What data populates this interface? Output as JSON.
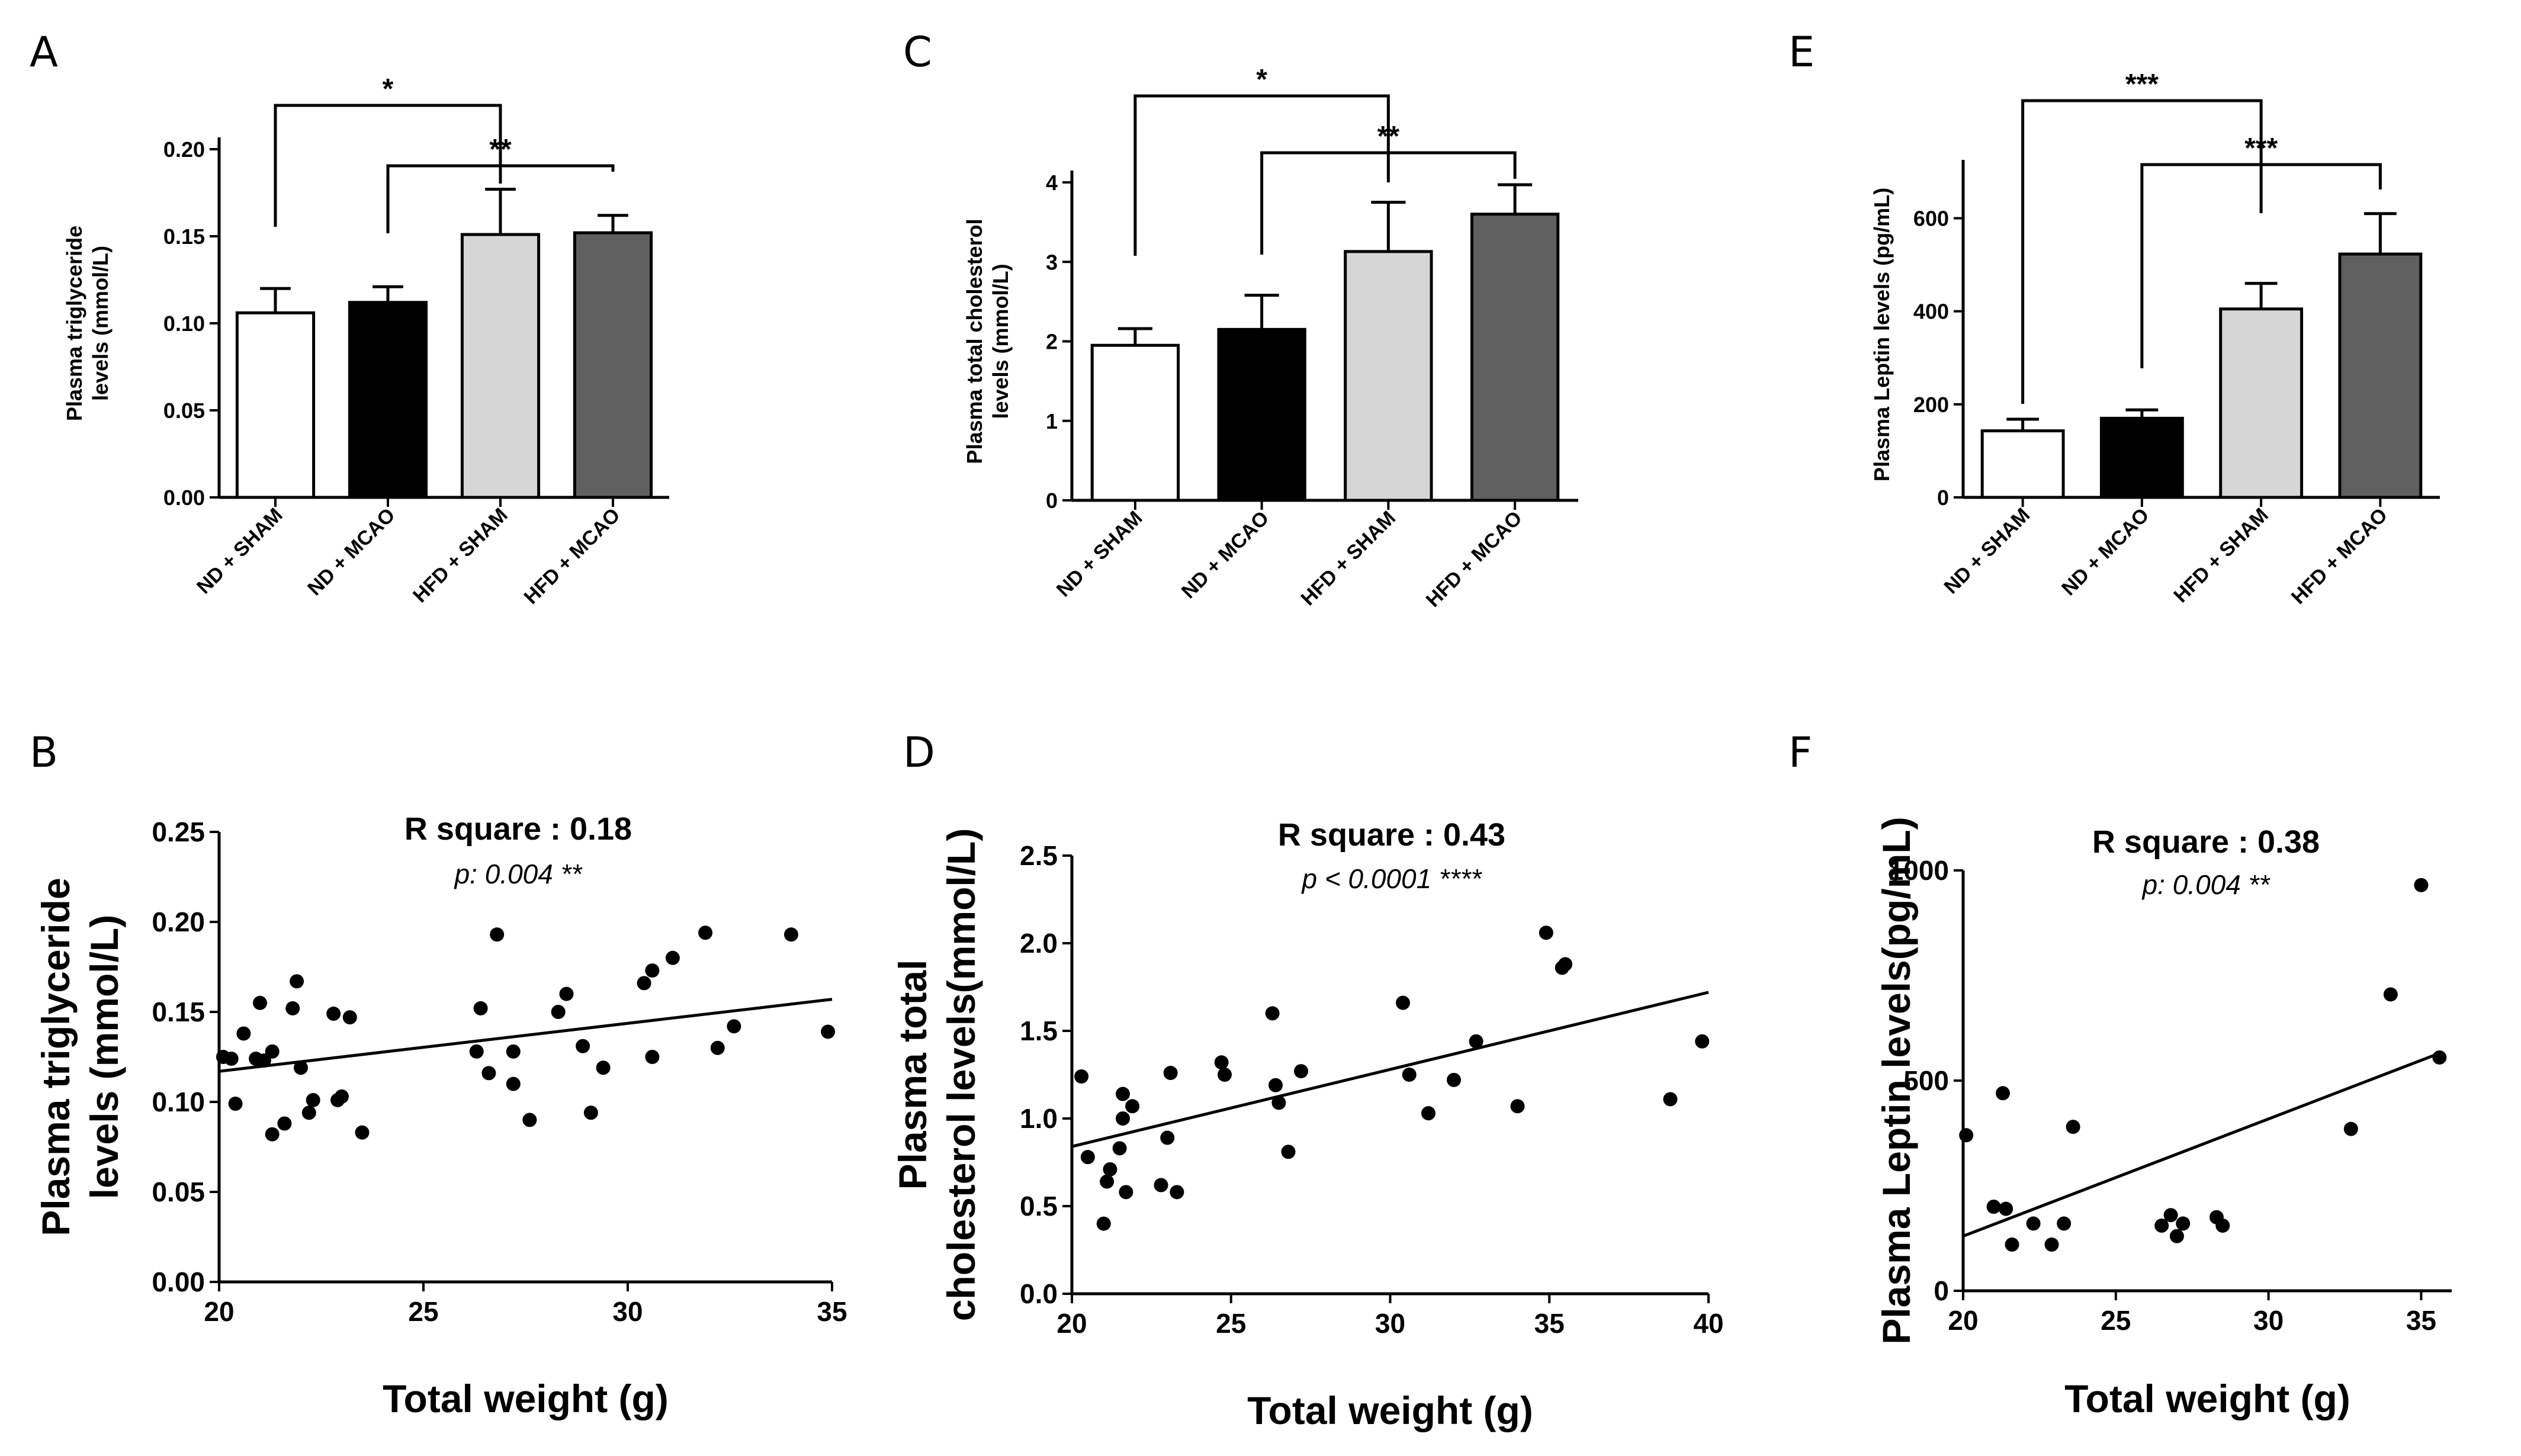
{
  "panels": {
    "A": "A",
    "B": "B",
    "C": "C",
    "D": "D",
    "E": "E",
    "F": "F"
  },
  "chart_data": [
    {
      "id": "A",
      "type": "bar",
      "ylabel": [
        "Plasma triglyceride",
        "levels (mmol/L)"
      ],
      "categories": [
        "ND + SHAM",
        "ND + MCAO",
        "HFD + SHAM",
        "HFD + MCAO"
      ],
      "values": [
        0.106,
        0.112,
        0.151,
        0.152
      ],
      "errors": [
        0.014,
        0.009,
        0.026,
        0.01
      ],
      "colors": [
        "#ffffff",
        "#000000",
        "#d6d6d6",
        "#5f5f5f"
      ],
      "ylim": [
        0,
        0.2
      ],
      "yticks": [
        0,
        0.05,
        0.1,
        0.15,
        0.2
      ],
      "ytick_labels": [
        "0.00",
        "0.05",
        "0.10",
        "0.15",
        "0.20"
      ],
      "significance": [
        {
          "from": 0,
          "to": 2,
          "label": "*"
        },
        {
          "from": 1,
          "to": 3,
          "label": "**"
        }
      ]
    },
    {
      "id": "C",
      "type": "bar",
      "ylabel": [
        "Plasma total cholesterol",
        "levels (mmol/L)"
      ],
      "categories": [
        "ND + SHAM",
        "ND + MCAO",
        "HFD + SHAM",
        "HFD + MCAO"
      ],
      "values": [
        1.95,
        2.15,
        3.13,
        3.6
      ],
      "errors": [
        0.21,
        0.43,
        0.62,
        0.37
      ],
      "colors": [
        "#ffffff",
        "#000000",
        "#d6d6d6",
        "#5f5f5f"
      ],
      "ylim": [
        0,
        4
      ],
      "yticks": [
        0,
        1,
        2,
        3,
        4
      ],
      "ytick_labels": [
        "0",
        "1",
        "2",
        "3",
        "4"
      ],
      "significance": [
        {
          "from": 0,
          "to": 2,
          "label": "*"
        },
        {
          "from": 1,
          "to": 3,
          "label": "**"
        }
      ]
    },
    {
      "id": "E",
      "type": "bar",
      "ylabel": [
        "Plasma Leptin levels (pg/mL)"
      ],
      "categories": [
        "ND + SHAM",
        "ND + MCAO",
        "HFD + SHAM",
        "HFD + MCAO"
      ],
      "values": [
        143,
        170,
        405,
        523
      ],
      "errors": [
        25,
        18,
        55,
        87
      ],
      "colors": [
        "#ffffff",
        "#000000",
        "#d6d6d6",
        "#5f5f5f"
      ],
      "ylim": [
        0,
        700
      ],
      "yticks": [
        0,
        200,
        400,
        600
      ],
      "ytick_labels": [
        "0",
        "200",
        "400",
        "600"
      ],
      "significance": [
        {
          "from": 0,
          "to": 2,
          "label": "***"
        },
        {
          "from": 1,
          "to": 3,
          "label": "***"
        }
      ]
    },
    {
      "id": "B",
      "type": "scatter",
      "xlabel": "Total weight (g)",
      "ylabel": [
        "Plasma triglyceride",
        "levels (mmol/L)"
      ],
      "xlim": [
        20,
        35
      ],
      "ylim": [
        0,
        0.25
      ],
      "xticks": [
        20,
        25,
        30,
        35
      ],
      "xtick_labels": [
        "20",
        "25",
        "30",
        "35"
      ],
      "yticks": [
        0,
        0.05,
        0.1,
        0.15,
        0.2,
        0.25
      ],
      "ytick_labels": [
        "0.00",
        "0.05",
        "0.10",
        "0.15",
        "0.20",
        "0.25"
      ],
      "annotation": "R square : 0.18",
      "pvalue": "p: 0.004 **",
      "fit": [
        [
          20,
          0.117
        ],
        [
          35,
          0.157
        ]
      ],
      "x": [
        20.1,
        20.3,
        20.4,
        20.6,
        20.9,
        21.0,
        21.1,
        21.3,
        21.3,
        21.6,
        21.8,
        21.9,
        22.0,
        22.2,
        22.3,
        22.8,
        22.9,
        23.0,
        23.2,
        23.5,
        26.3,
        26.4,
        26.6,
        26.8,
        27.2,
        27.2,
        27.6,
        28.3,
        28.5,
        28.9,
        29.1,
        29.4,
        30.4,
        30.6,
        30.6,
        31.1,
        31.9,
        32.2,
        32.6,
        34.0,
        34.9
      ],
      "y": [
        0.125,
        0.124,
        0.099,
        0.138,
        0.124,
        0.155,
        0.123,
        0.082,
        0.128,
        0.088,
        0.152,
        0.167,
        0.119,
        0.094,
        0.101,
        0.149,
        0.101,
        0.103,
        0.147,
        0.083,
        0.128,
        0.152,
        0.116,
        0.193,
        0.128,
        0.11,
        0.09,
        0.15,
        0.16,
        0.131,
        0.094,
        0.119,
        0.166,
        0.125,
        0.173,
        0.18,
        0.194,
        0.13,
        0.142,
        0.193,
        0.139
      ]
    },
    {
      "id": "D",
      "type": "scatter",
      "xlabel": "Total weight (g)",
      "ylabel": [
        "Plasma total",
        "cholesterol levels(mmol/L)"
      ],
      "xlim": [
        20,
        40
      ],
      "ylim": [
        0,
        2.5
      ],
      "xticks": [
        20,
        25,
        30,
        35,
        40
      ],
      "xtick_labels": [
        "20",
        "25",
        "30",
        "35",
        "40"
      ],
      "yticks": [
        0,
        0.5,
        1.0,
        1.5,
        2.0,
        2.5
      ],
      "ytick_labels": [
        "0.0",
        "0.5",
        "1.0",
        "1.5",
        "2.0",
        "2.5"
      ],
      "annotation": "R square : 0.43",
      "pvalue": "p < 0.0001 ****",
      "fit": [
        [
          20,
          0.84
        ],
        [
          40,
          1.72
        ]
      ],
      "x": [
        20.3,
        20.5,
        21.0,
        21.1,
        21.2,
        21.5,
        21.6,
        21.6,
        21.7,
        21.9,
        22.8,
        23.0,
        23.1,
        23.3,
        24.7,
        24.8,
        26.3,
        26.4,
        26.5,
        26.8,
        27.2,
        30.4,
        30.6,
        31.2,
        32.0,
        32.7,
        34.0,
        34.9,
        35.4,
        35.5,
        38.8,
        39.8
      ],
      "y": [
        1.24,
        0.78,
        0.4,
        0.64,
        0.71,
        0.83,
        1.0,
        1.14,
        0.58,
        1.07,
        0.62,
        0.89,
        1.26,
        0.58,
        1.32,
        1.25,
        1.6,
        1.19,
        1.09,
        0.81,
        1.27,
        1.66,
        1.25,
        1.03,
        1.22,
        1.44,
        1.07,
        2.06,
        1.86,
        1.88,
        1.11,
        1.44
      ]
    },
    {
      "id": "F",
      "type": "scatter",
      "xlabel": "Total weight (g)",
      "ylabel": [
        "Plasma Leptin levels(pg/mL)"
      ],
      "xlim": [
        20,
        36
      ],
      "ylim": [
        0,
        1000
      ],
      "xticks": [
        20,
        25,
        30,
        35
      ],
      "xtick_labels": [
        "20",
        "25",
        "30",
        "35"
      ],
      "yticks": [
        0,
        500,
        1000
      ],
      "ytick_labels": [
        "0",
        "500",
        "1000"
      ],
      "annotation": "R square : 0.38",
      "pvalue": "p: 0.004 **",
      "fit": [
        [
          20,
          130
        ],
        [
          35.6,
          565
        ]
      ],
      "x": [
        20.1,
        21.0,
        21.3,
        21.4,
        21.6,
        22.3,
        22.9,
        23.3,
        23.6,
        26.5,
        26.8,
        27.0,
        27.2,
        28.3,
        28.5,
        32.7,
        34.0,
        35.0,
        35.6
      ],
      "y": [
        370,
        200,
        470,
        195,
        110,
        160,
        110,
        160,
        390,
        155,
        180,
        130,
        160,
        175,
        155,
        385,
        705,
        965,
        555
      ]
    }
  ]
}
